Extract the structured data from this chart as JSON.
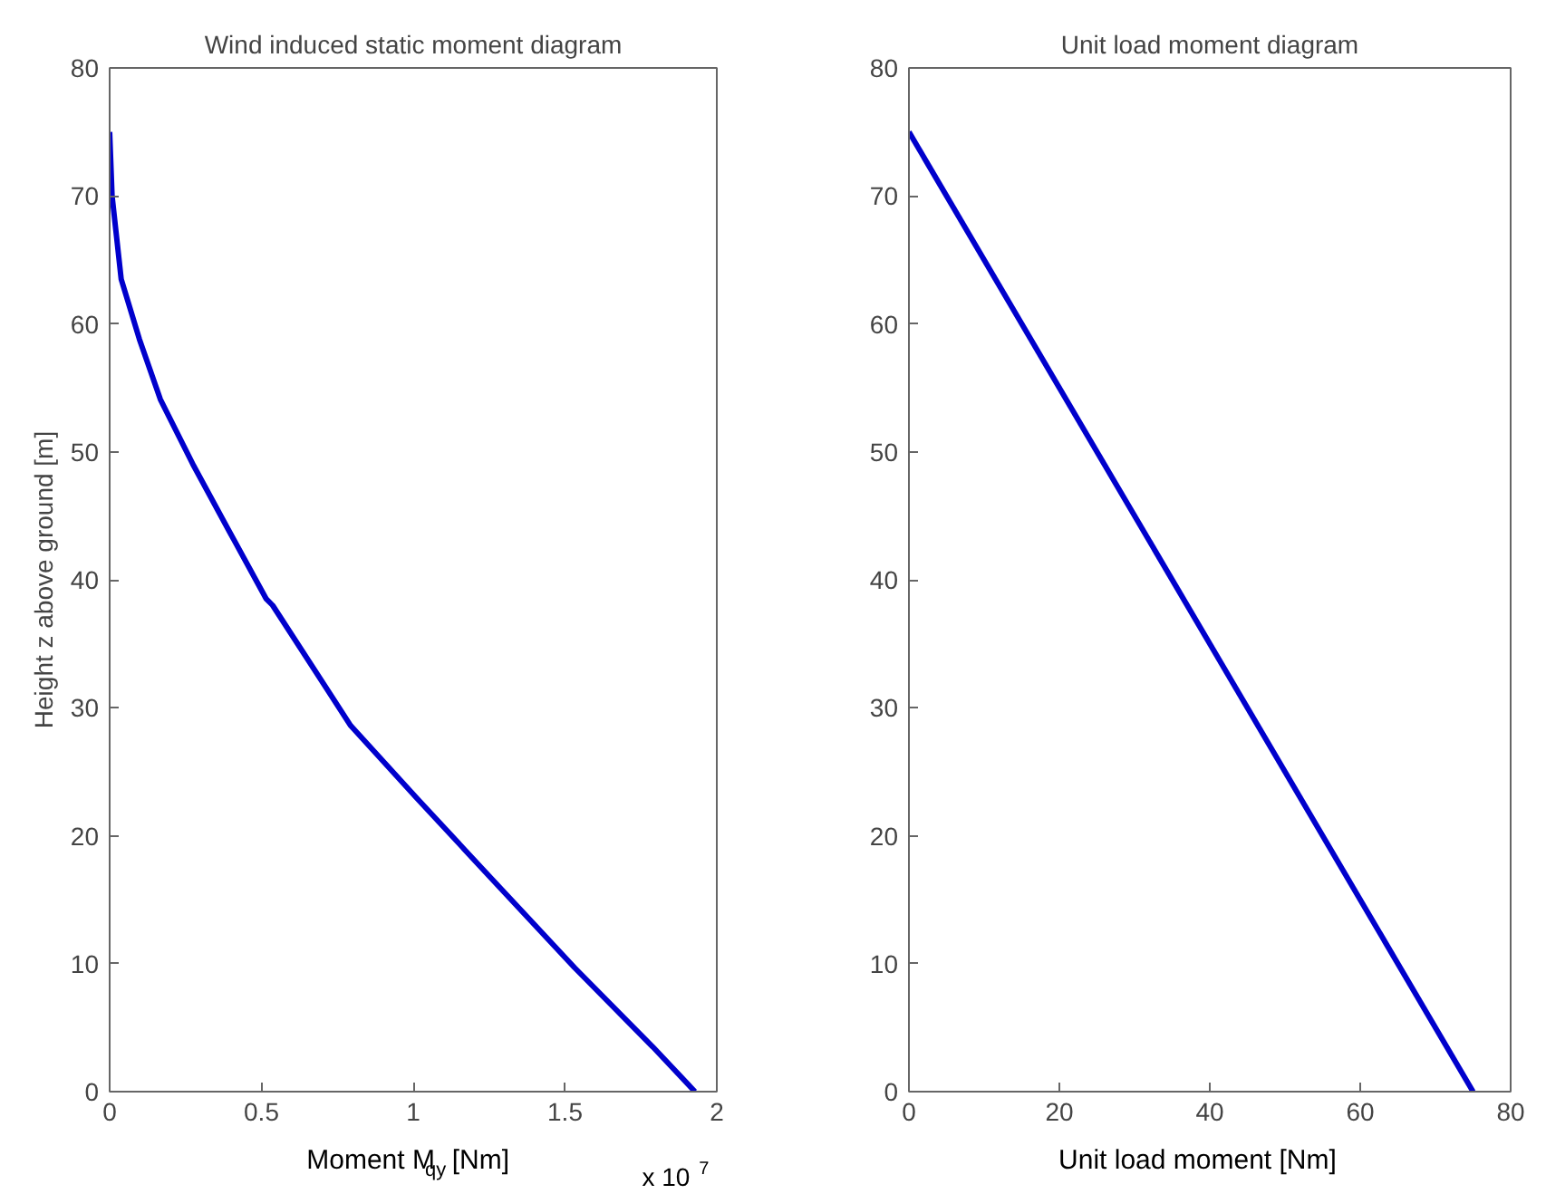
{
  "chart_data": [
    {
      "type": "line",
      "title": "Wind induced static moment diagram",
      "xlabel": "Moment M$_{qy}$ [Nm]",
      "ylabel": "Height z above ground [m]",
      "series": [
        {
          "color": "#0000cc",
          "x": [
            1.928,
            1.789,
            1.531,
            1.252,
            1.013,
            0.794,
            0.537,
            0.516,
            0.396,
            0.277,
            0.167,
            0.098,
            0.038,
            0.008,
            0.0
          ],
          "values": [
            0,
            3.5,
            9.7,
            16.8,
            22.9,
            28.6,
            38.0,
            38.5,
            43.7,
            48.9,
            54.1,
            58.8,
            63.5,
            70,
            75
          ]
        }
      ],
      "xlim": [
        0,
        2
      ],
      "xticks": [
        0,
        0.5,
        1,
        1.5,
        2
      ],
      "ylim": [
        0,
        80
      ],
      "yticks": [
        0,
        10,
        20,
        30,
        40,
        50,
        60,
        70,
        80
      ],
      "annotations": [
        "x 10$^{7}$"
      ],
      "grid": false,
      "line_style": "solid"
    },
    {
      "type": "line",
      "title": "Unit load moment diagram",
      "xlabel": "Unit load moment [Nm]",
      "series": [
        {
          "color": "#0000cc",
          "x": [
            0,
            75
          ],
          "values": [
            75,
            0
          ]
        }
      ],
      "xlim": [
        0,
        80
      ],
      "xticks": [
        0,
        20,
        40,
        60,
        80
      ],
      "ylim": [
        0,
        80
      ],
      "yticks": [
        0,
        10,
        20,
        30,
        40,
        50,
        60,
        70,
        80
      ],
      "grid": false,
      "line_style": "solid"
    }
  ]
}
